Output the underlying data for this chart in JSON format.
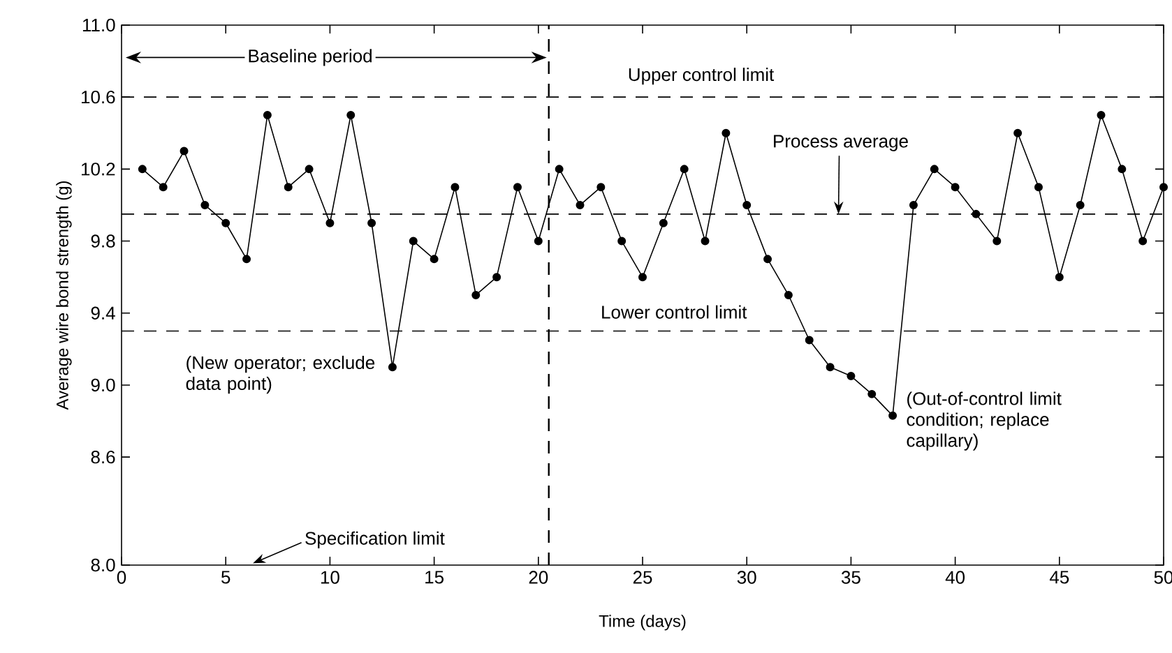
{
  "chart_data": {
    "type": "line",
    "xlabel": "Time (days)",
    "ylabel": "Average wire bond strength (g)",
    "x": [
      1,
      2,
      3,
      4,
      5,
      6,
      7,
      8,
      9,
      10,
      11,
      12,
      13,
      14,
      15,
      16,
      17,
      18,
      19,
      20,
      21,
      22,
      23,
      24,
      25,
      26,
      27,
      28,
      29,
      30,
      31,
      32,
      33,
      34,
      35,
      36,
      37,
      38,
      39,
      40,
      41,
      42,
      43,
      44,
      45,
      46,
      47,
      48,
      49,
      50
    ],
    "series": [
      {
        "color": "#000000",
        "values": [
          10.2,
          10.1,
          10.3,
          10.0,
          9.9,
          9.7,
          10.5,
          10.1,
          10.2,
          9.9,
          10.5,
          9.9,
          9.1,
          9.8,
          9.7,
          10.1,
          9.5,
          9.6,
          10.1,
          9.8,
          10.2,
          10.0,
          10.1,
          9.8,
          9.6,
          9.9,
          10.2,
          9.8,
          10.4,
          10.0,
          9.7,
          9.5,
          9.25,
          9.1,
          9.05,
          8.95,
          8.83,
          10.0,
          10.2,
          10.1,
          9.95,
          9.8,
          10.4,
          10.1,
          9.6,
          10.0,
          10.5,
          10.2,
          9.8,
          10.1
        ]
      }
    ],
    "marker": "circle",
    "line_style": "solid",
    "xlim": [
      0,
      50
    ],
    "xticks": [
      0,
      5,
      10,
      15,
      20,
      25,
      30,
      35,
      40,
      45,
      50
    ],
    "ylim": [
      8.0,
      11.0
    ],
    "yticks": [
      {
        "value": 8.0,
        "label": "8.0"
      },
      8.6,
      {
        "value": 9.0,
        "label": "9.0"
      },
      9.4,
      9.8,
      10.2,
      10.6,
      {
        "value": 11.0,
        "label": "11.0"
      }
    ],
    "ref_lines": [
      {
        "axis": "y",
        "value": 10.6,
        "label": "Upper control limit",
        "line_style": "dashed"
      },
      {
        "axis": "y",
        "value": 9.95,
        "label": "Process average",
        "line_style": "dashed"
      },
      {
        "axis": "y",
        "value": 9.3,
        "label": "Lower control limit",
        "line_style": "dashed"
      },
      {
        "axis": "x",
        "value": 20.5,
        "line_style": "dashed"
      }
    ],
    "annotations": [
      "Baseline period",
      {
        "text": "(New operator; exclude data point)",
        "x": 13,
        "y": 9.1
      },
      "Specification limit",
      {
        "text": "(Out-of-control limit condition; replace capillary)",
        "x": 37,
        "y": 8.83
      }
    ]
  }
}
